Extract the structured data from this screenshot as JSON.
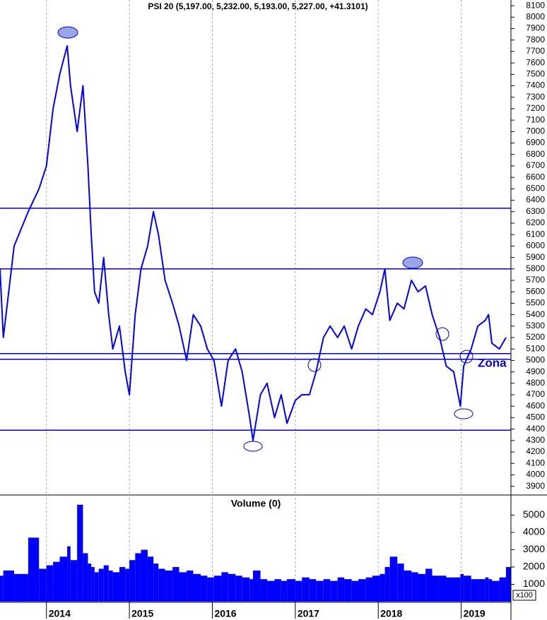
{
  "chart_data": [
    {
      "type": "line",
      "title": "PSI 20 (5,197.00, 5,232.00, 5,193.00, 5,227.00, +41.3101)",
      "color": "#0000ff",
      "x": [
        2013.44,
        2013.48,
        2013.61,
        2013.78,
        2013.91,
        2014.0,
        2014.08,
        2014.16,
        2014.25,
        2014.29,
        2014.37,
        2014.44,
        2014.5,
        2014.54,
        2014.58,
        2014.63,
        2014.69,
        2014.75,
        2014.8,
        2014.88,
        2014.95,
        2015.0,
        2015.07,
        2015.14,
        2015.22,
        2015.29,
        2015.35,
        2015.43,
        2015.52,
        2015.6,
        2015.69,
        2015.77,
        2015.86,
        2015.94,
        2016.02,
        2016.11,
        2016.19,
        2016.28,
        2016.36,
        2016.45,
        2016.49,
        2016.58,
        2016.66,
        2016.75,
        2016.83,
        2016.9,
        2017.0,
        2017.08,
        2017.17,
        2017.25,
        2017.34,
        2017.42,
        2017.51,
        2017.59,
        2017.68,
        2017.76,
        2017.85,
        2017.93,
        2018.02,
        2018.08,
        2018.14,
        2018.23,
        2018.31,
        2018.4,
        2018.48,
        2018.57,
        2018.65,
        2018.74,
        2018.82,
        2018.91,
        2018.99,
        2019.03,
        2019.12,
        2019.2,
        2019.29,
        2019.33,
        2019.37,
        2019.46,
        2019.54
      ],
      "values": [
        5800,
        5200,
        6000,
        6300,
        6500,
        6700,
        7200,
        7500,
        7750,
        7400,
        7000,
        7400,
        6700,
        6100,
        5600,
        5500,
        5900,
        5400,
        5100,
        5300,
        4900,
        4700,
        5400,
        5800,
        6000,
        6300,
        6100,
        5700,
        5500,
        5300,
        5000,
        5400,
        5300,
        5100,
        5000,
        4600,
        5000,
        5100,
        4900,
        4500,
        4300,
        4700,
        4800,
        4500,
        4700,
        4450,
        4650,
        4700,
        4700,
        4900,
        5200,
        5300,
        5200,
        5300,
        5100,
        5300,
        5450,
        5400,
        5600,
        5800,
        5350,
        5500,
        5450,
        5700,
        5600,
        5650,
        5400,
        5200,
        4950,
        4900,
        4600,
        4950,
        5100,
        5300,
        5350,
        5400,
        5150,
        5100,
        5200
      ],
      "xlim": [
        2013.44,
        2019.6
      ],
      "xticks": [
        2014,
        2015,
        2016,
        2017,
        2018,
        2019
      ],
      "ylim": [
        3830,
        8150
      ],
      "yticks": [
        3900,
        4000,
        4100,
        4200,
        4300,
        4400,
        4500,
        4600,
        4700,
        4800,
        4900,
        5000,
        5100,
        5200,
        5300,
        5400,
        5500,
        5600,
        5700,
        5800,
        5900,
        6000,
        6100,
        6200,
        6300,
        6400,
        6500,
        6600,
        6700,
        6800,
        6900,
        7000,
        7100,
        7200,
        7300,
        7400,
        7500,
        7600,
        7700,
        7800,
        7900,
        8000,
        8100
      ],
      "hlines": [
        6330,
        5800,
        5060,
        5010,
        4390
      ],
      "hline_color": "#0000cc",
      "annotation": "Zona",
      "grid": true
    },
    {
      "type": "bar",
      "title": "Volume (0)",
      "color": "#0000ff",
      "x": [
        2013.44,
        2013.48,
        2013.61,
        2013.78,
        2013.91,
        2014.0,
        2014.08,
        2014.16,
        2014.25,
        2014.29,
        2014.37,
        2014.44,
        2014.5,
        2014.54,
        2014.58,
        2014.63,
        2014.69,
        2014.75,
        2014.8,
        2014.88,
        2014.95,
        2015.0,
        2015.07,
        2015.14,
        2015.22,
        2015.29,
        2015.35,
        2015.43,
        2015.52,
        2015.6,
        2015.69,
        2015.77,
        2015.86,
        2015.94,
        2016.02,
        2016.11,
        2016.19,
        2016.28,
        2016.36,
        2016.45,
        2016.49,
        2016.58,
        2016.66,
        2016.75,
        2016.83,
        2016.9,
        2017.0,
        2017.08,
        2017.17,
        2017.25,
        2017.34,
        2017.42,
        2017.51,
        2017.59,
        2017.68,
        2017.76,
        2017.85,
        2017.93,
        2018.02,
        2018.08,
        2018.14,
        2018.23,
        2018.31,
        2018.4,
        2018.48,
        2018.57,
        2018.65,
        2018.74,
        2018.82,
        2018.91,
        2018.99,
        2019.03,
        2019.12,
        2019.2,
        2019.29,
        2019.33,
        2019.37,
        2019.46,
        2019.54
      ],
      "values": [
        1500,
        1800,
        1600,
        3700,
        1900,
        2100,
        2300,
        2600,
        3200,
        2400,
        5600,
        2800,
        2200,
        2000,
        1700,
        1900,
        2100,
        1800,
        1700,
        2000,
        1900,
        2400,
        2800,
        3000,
        2600,
        2200,
        1900,
        1800,
        2000,
        1700,
        1800,
        1600,
        1500,
        1400,
        1500,
        1700,
        1600,
        1500,
        1400,
        1300,
        1800,
        1300,
        1200,
        1300,
        1200,
        1300,
        1200,
        1400,
        1300,
        1200,
        1300,
        1200,
        1400,
        1300,
        1200,
        1300,
        1400,
        1500,
        1600,
        2000,
        2600,
        2200,
        1800,
        1700,
        1600,
        1900,
        1500,
        1500,
        1400,
        1400,
        1600,
        1500,
        1300,
        1300,
        1400,
        1300,
        1200,
        1400,
        2000
      ],
      "xlim": [
        2013.44,
        2019.6
      ],
      "xticks": [
        2014,
        2015,
        2016,
        2017,
        2018,
        2019
      ],
      "ylim": [
        0,
        6000
      ],
      "yticks": [
        1000,
        2000,
        3000,
        4000,
        5000
      ],
      "y_unit_label": "x100",
      "grid": true
    }
  ]
}
